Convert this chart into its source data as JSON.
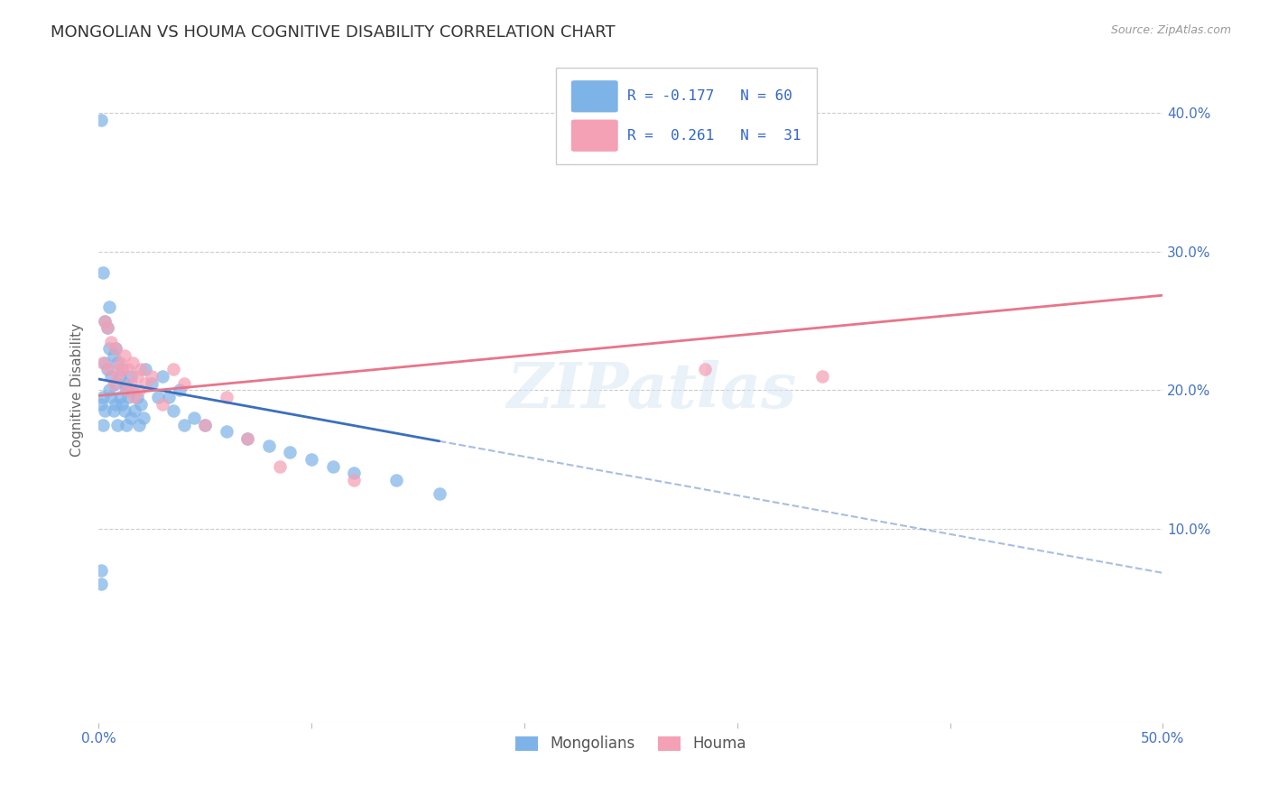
{
  "title": "MONGOLIAN VS HOUMA COGNITIVE DISABILITY CORRELATION CHART",
  "source": "Source: ZipAtlas.com",
  "ylabel_label": "Cognitive Disability",
  "xlim": [
    0.0,
    0.5
  ],
  "ylim": [
    -0.04,
    0.44
  ],
  "legend_r_blue": "-0.177",
  "legend_n_blue": "60",
  "legend_r_pink": "0.261",
  "legend_n_pink": "31",
  "blue_color": "#7EB3E8",
  "pink_color": "#F4A0B5",
  "blue_line_color": "#3A6FBF",
  "pink_line_color": "#E8758A",
  "background_color": "#FFFFFF",
  "tick_color": "#4472C4",
  "watermark": "ZIPatlas",
  "title_fontsize": 13,
  "axis_label_fontsize": 11,
  "tick_fontsize": 11
}
